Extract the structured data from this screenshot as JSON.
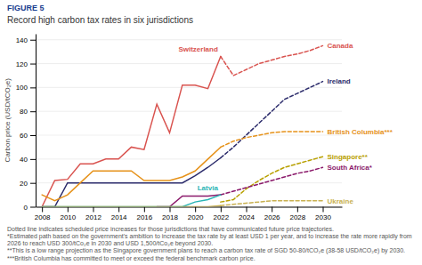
{
  "chart_data": {
    "type": "line",
    "figure_label": "FIGURE 5",
    "title": "Record high carbon tax rates in six jurisdictions",
    "ylabel": "Carbon price (USD/tCO₂e)",
    "xlim": [
      2007.5,
      2031.5
    ],
    "xticks": [
      2008,
      2010,
      2012,
      2014,
      2016,
      2018,
      2020,
      2022,
      2024,
      2026,
      2028,
      2030
    ],
    "ylim": [
      0,
      145
    ],
    "yticks": [
      0,
      20,
      40,
      60,
      80,
      100,
      120,
      140
    ],
    "grid": true,
    "series": [
      {
        "name": "Switzerland",
        "color": "#d9534f",
        "line_style": "solid",
        "x": [
          2008,
          2009,
          2010,
          2011,
          2012,
          2013,
          2014,
          2015,
          2016,
          2017,
          2018,
          2019,
          2020,
          2021,
          2022
        ],
        "values": [
          0,
          22,
          23,
          36,
          36,
          40,
          40,
          50,
          48,
          86,
          62,
          102,
          102,
          99,
          126
        ]
      },
      {
        "name": "Canada",
        "color": "#d9534f",
        "line_style": "dashed",
        "x": [
          2022,
          2023,
          2024,
          2025,
          2026,
          2027,
          2028,
          2029,
          2030
        ],
        "values": [
          126,
          110,
          115,
          120,
          123,
          126,
          128,
          131,
          135
        ]
      },
      {
        "name": "Ireland",
        "color": "#2b2b6b",
        "line_style": "solid",
        "x": [
          2008,
          2009,
          2010,
          2011,
          2012,
          2013,
          2014,
          2015,
          2016,
          2017,
          2018,
          2019,
          2020,
          2021,
          2022
        ],
        "values": [
          0,
          0,
          20,
          20,
          20,
          20,
          20,
          20,
          20,
          20,
          20,
          20,
          26,
          33,
          41
        ]
      },
      {
        "name": "Ireland",
        "color": "#2b2b6b",
        "line_style": "dashed",
        "x": [
          2022,
          2023,
          2024,
          2025,
          2026,
          2027,
          2028,
          2029,
          2030
        ],
        "values": [
          41,
          50,
          60,
          70,
          80,
          90,
          95,
          100,
          105
        ]
      },
      {
        "name": "British Columbia***",
        "color": "#e6921a",
        "line_style": "solid",
        "x": [
          2008,
          2009,
          2010,
          2011,
          2012,
          2013,
          2014,
          2015,
          2016,
          2017,
          2018,
          2019,
          2020,
          2021,
          2022
        ],
        "values": [
          10,
          5,
          10,
          20,
          30,
          30,
          30,
          30,
          22,
          22,
          22,
          25,
          30,
          40,
          50
        ]
      },
      {
        "name": "British Columbia***",
        "color": "#e6921a",
        "line_style": "dashed",
        "x": [
          2022,
          2023,
          2024,
          2025,
          2026,
          2027,
          2028,
          2029,
          2030
        ],
        "values": [
          50,
          55,
          58,
          60,
          62,
          63,
          63,
          63,
          63
        ]
      },
      {
        "name": "Singapore**",
        "color": "#b8a000",
        "line_style": "dashed",
        "x": [
          2022,
          2023,
          2024,
          2025,
          2026,
          2027,
          2028,
          2029,
          2030
        ],
        "values": [
          4,
          6,
          15,
          22,
          28,
          33,
          36,
          39,
          42
        ]
      },
      {
        "name": "South Africa*",
        "color": "#8b1a6b",
        "line_style": "solid",
        "x": [
          2017,
          2018,
          2019,
          2020,
          2021,
          2022
        ],
        "values": [
          0,
          0,
          9,
          9,
          9,
          10
        ]
      },
      {
        "name": "South Africa*",
        "color": "#8b1a6b",
        "line_style": "dashed",
        "x": [
          2022,
          2023,
          2024,
          2025,
          2026,
          2027,
          2028,
          2029,
          2030
        ],
        "values": [
          10,
          13,
          16,
          19,
          22,
          25,
          28,
          30,
          33
        ]
      },
      {
        "name": "Latvia",
        "color": "#2ab5b5",
        "line_style": "solid",
        "x": [
          2008,
          2009,
          2010,
          2011,
          2012,
          2013,
          2014,
          2015,
          2016,
          2017,
          2018,
          2019,
          2020,
          2021,
          2022
        ],
        "values": [
          0,
          0,
          0,
          0,
          0,
          0,
          0,
          0,
          0,
          0,
          0,
          0,
          4,
          6,
          10
        ]
      },
      {
        "name": "Ukraine",
        "color": "#c8b050",
        "line_style": "solid",
        "x": [
          2008,
          2009,
          2010,
          2011,
          2012,
          2013,
          2014,
          2015,
          2016,
          2017,
          2018,
          2019,
          2020,
          2021,
          2022
        ],
        "values": [
          0,
          0,
          0,
          0,
          0,
          0,
          0,
          0,
          0,
          0,
          0,
          0,
          0,
          0,
          1
        ]
      },
      {
        "name": "Ukraine",
        "color": "#c8b050",
        "line_style": "dashed",
        "x": [
          2022,
          2023,
          2024,
          2025,
          2026,
          2027,
          2028,
          2029,
          2030
        ],
        "values": [
          1,
          2,
          3,
          4,
          5,
          5,
          5,
          5,
          5
        ]
      }
    ],
    "footnotes": [
      "Dotted line indicates scheduled price increases for those jurisdictions that have communicated future price trajectories.",
      "*Estimated path based on the government's ambition to increase the tax rate by at least USD 1 per year, and to increase the rate more rapidly from 2026 to reach USD 300/tCo₂e in 2030 and USD 1,500/tCo₂e beyond 2030.",
      "**This is a low range projection as the Singapore government plans to reach a carbon tax rate of SGD 50-80/tCO₂e (38-58 USD/tCO₂e) by 2030.",
      "***British Columbia has committed to meet or exceed the federal benchmark carbon price."
    ]
  }
}
